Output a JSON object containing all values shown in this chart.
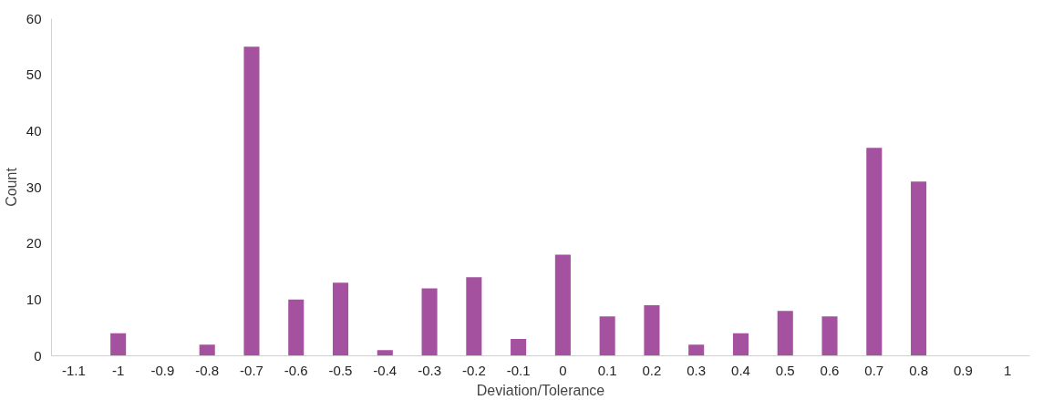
{
  "chart_data": {
    "type": "bar",
    "xlabel": "Deviation/Tolerance",
    "ylabel": "Count",
    "categories": [
      "-1.1",
      "-1",
      "-0.9",
      "-0.8",
      "-0.7",
      "-0.6",
      "-0.5",
      "-0.4",
      "-0.3",
      "-0.2",
      "-0.1",
      "0",
      "0.1",
      "0.2",
      "0.3",
      "0.4",
      "0.5",
      "0.6",
      "0.7",
      "0.8",
      "0.9",
      "1"
    ],
    "values": [
      0,
      4,
      0,
      2,
      55,
      10,
      13,
      1,
      12,
      14,
      3,
      18,
      7,
      9,
      2,
      4,
      8,
      7,
      37,
      31,
      0,
      0
    ],
    "color": "#a4519f",
    "ylim": [
      0,
      60
    ],
    "yticks": [
      0,
      10,
      20,
      30,
      40,
      50,
      60
    ],
    "grid": false
  }
}
